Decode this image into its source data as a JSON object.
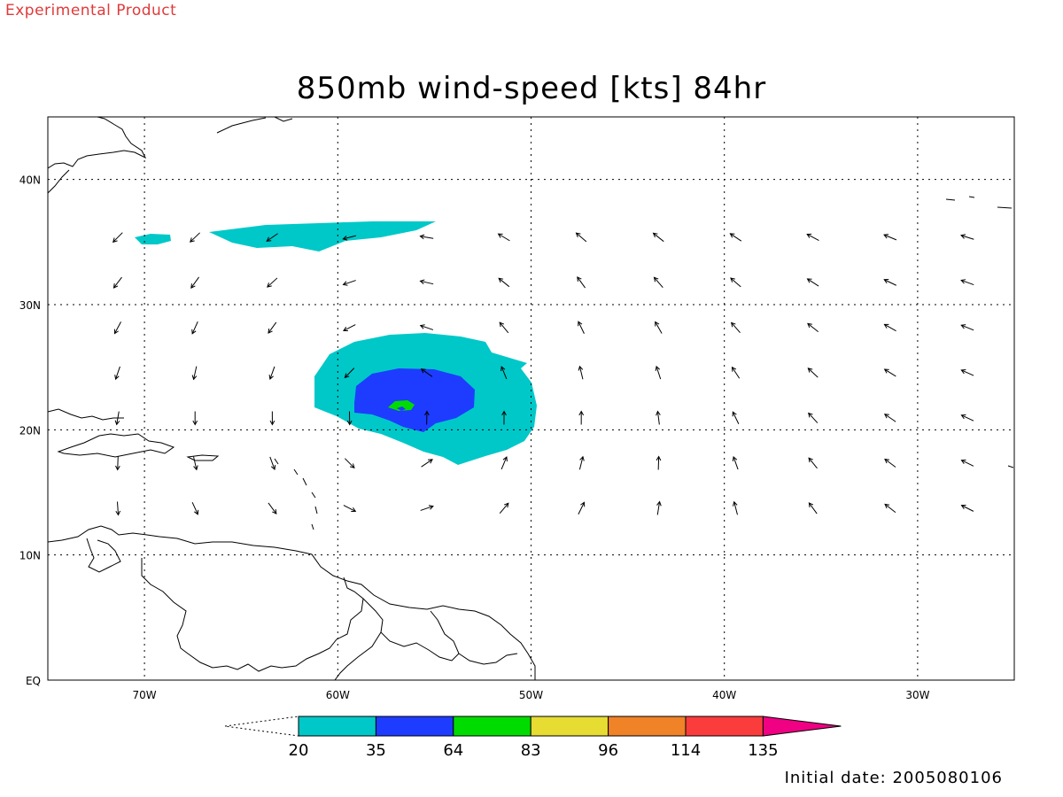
{
  "header": {
    "product_label": "Experimental Product",
    "title": "850mb wind-speed [kts] 84hr"
  },
  "footer": {
    "initial_date": "Initial date: 2005080106"
  },
  "map": {
    "region": "Tropical Atlantic / Caribbean",
    "lon_range": [
      -75,
      -25
    ],
    "lat_range": [
      0,
      45
    ],
    "lon_ticks": [
      {
        "value": -70,
        "label": "70W"
      },
      {
        "value": -60,
        "label": "60W"
      },
      {
        "value": -50,
        "label": "50W"
      },
      {
        "value": -40,
        "label": "40W"
      },
      {
        "value": -30,
        "label": "30W"
      }
    ],
    "lat_ticks": [
      {
        "value": 0,
        "label": "EQ"
      },
      {
        "value": 10,
        "label": "10N"
      },
      {
        "value": 20,
        "label": "20N"
      },
      {
        "value": 30,
        "label": "30N"
      },
      {
        "value": 40,
        "label": "40N"
      }
    ],
    "grid": true,
    "storm_center": {
      "lon": -57,
      "lat": 21
    }
  },
  "colorbar": {
    "unit": "kts",
    "levels": [
      "20",
      "35",
      "64",
      "83",
      "96",
      "114",
      "135"
    ],
    "colors": [
      "#00c8c8",
      "#1e3cff",
      "#00dc00",
      "#e6dc32",
      "#f08228",
      "#fa3c3c",
      "#f00082"
    ]
  }
}
